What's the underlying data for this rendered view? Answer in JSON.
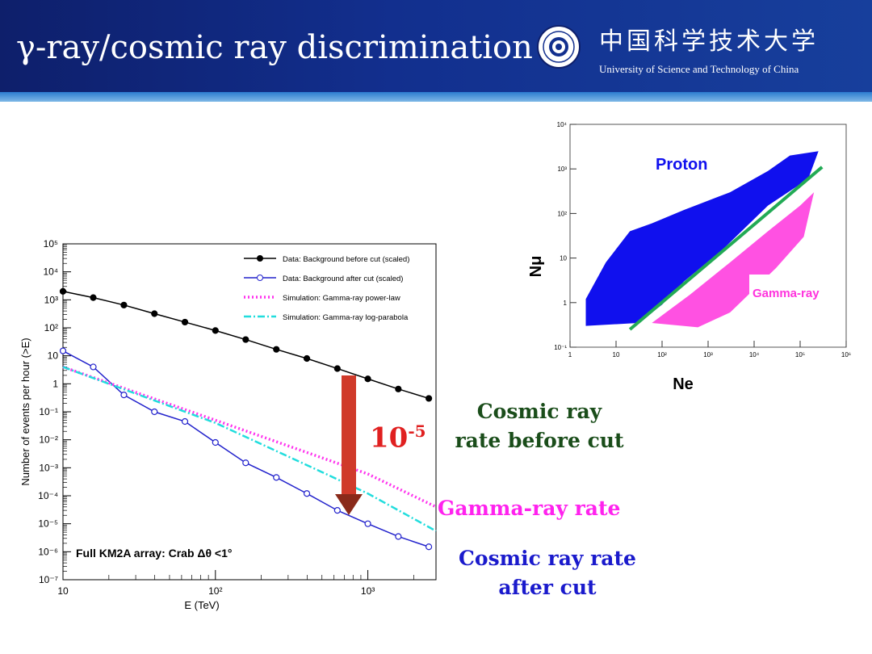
{
  "slide": {
    "title": "γ-ray/cosmic ray discrimination",
    "university_cn": "中国科学技术大学",
    "university_en": "University of Science and Technology of China"
  },
  "annotations": {
    "suppression": "10",
    "suppression_exp": "-5",
    "cosmic_before_line1": "Cosmic ray",
    "cosmic_before_line2": "rate before cut",
    "gamma_rate": "Gamma-ray rate",
    "cosmic_after_line1": "Cosmic ray rate",
    "cosmic_after_line2": "after cut"
  },
  "colors": {
    "header": "#122f8e",
    "background_before": "#000000",
    "background_after": "#2222cc",
    "gamma_powerlaw": "#ff33ee",
    "gamma_logparabola": "#22dddd",
    "arrow": "#d03a2a",
    "proton": "#1010ee",
    "gamma_scatter": "#ff33dd",
    "cut_line": "#22aa55",
    "cosmic_text": "#1a4d1a"
  },
  "chart_data": [
    {
      "type": "line",
      "xlabel": "E (TeV)",
      "ylabel": "Number of events per hour (>E)",
      "xscale": "log",
      "yscale": "log",
      "xlim": [
        10,
        2800
      ],
      "ylim": [
        1e-07,
        100000.0
      ],
      "x_ticks": [
        "10",
        "10²",
        "10³"
      ],
      "y_ticks": [
        "10⁻⁷",
        "10⁻⁶",
        "10⁻⁵",
        "10⁻⁴",
        "10⁻³",
        "10⁻²",
        "10⁻¹",
        "1",
        "10",
        "10²",
        "10³",
        "10⁴",
        "10⁵"
      ],
      "annotation": "Full KM2A array: Crab Δθ <1°",
      "legend_position": "top-right",
      "series": [
        {
          "name": "Data: Background before cut (scaled)",
          "style": "solid-filled-dots",
          "x": [
            10,
            15.8,
            25.1,
            39.8,
            63.1,
            100,
            158,
            251,
            398,
            631,
            1000,
            1585,
            2512
          ],
          "y": [
            2000,
            1200,
            650,
            320,
            160,
            80,
            38,
            17,
            8,
            3.5,
            1.5,
            0.65,
            0.3
          ]
        },
        {
          "name": "Data: Background after cut (scaled)",
          "style": "solid-open-circles",
          "x": [
            10,
            15.8,
            25.1,
            39.8,
            63.1,
            100,
            158,
            251,
            398,
            631,
            1000,
            1585,
            2512
          ],
          "y": [
            15,
            4,
            0.4,
            0.1,
            0.045,
            0.008,
            0.0015,
            0.00045,
            0.00012,
            3e-05,
            1e-05,
            3.5e-06,
            1.5e-06
          ]
        },
        {
          "name": "Simulation: Gamma-ray power-law",
          "style": "dotted",
          "x": [
            10,
            100,
            1000,
            2800
          ],
          "y": [
            4,
            0.05,
            0.0006,
            4e-05
          ]
        },
        {
          "name": "Simulation: Gamma-ray log-parabola",
          "style": "dash-dot",
          "x": [
            10,
            100,
            500,
            1000,
            2800
          ],
          "y": [
            4,
            0.04,
            0.0007,
            0.00012,
            5.5e-06
          ]
        }
      ]
    },
    {
      "type": "scatter",
      "xlabel": "Ne",
      "ylabel": "Nμ",
      "xscale": "log",
      "yscale": "log",
      "xlim": [
        1,
        1000000.0
      ],
      "ylim": [
        0.1,
        10000.0
      ],
      "x_ticks": [
        "1",
        "10",
        "10²",
        "10³",
        "10⁴",
        "10⁵",
        "10⁶"
      ],
      "y_ticks": [
        "10⁻¹",
        "1",
        "10",
        "10²",
        "10³",
        "10⁴"
      ],
      "populations": [
        {
          "name": "Proton",
          "color": "#1010ee"
        },
        {
          "name": "Gamma-ray",
          "color": "#ff33dd"
        }
      ],
      "cut_line": {
        "x": [
          20,
          300000
        ],
        "y": [
          0.25,
          1100
        ]
      }
    }
  ]
}
